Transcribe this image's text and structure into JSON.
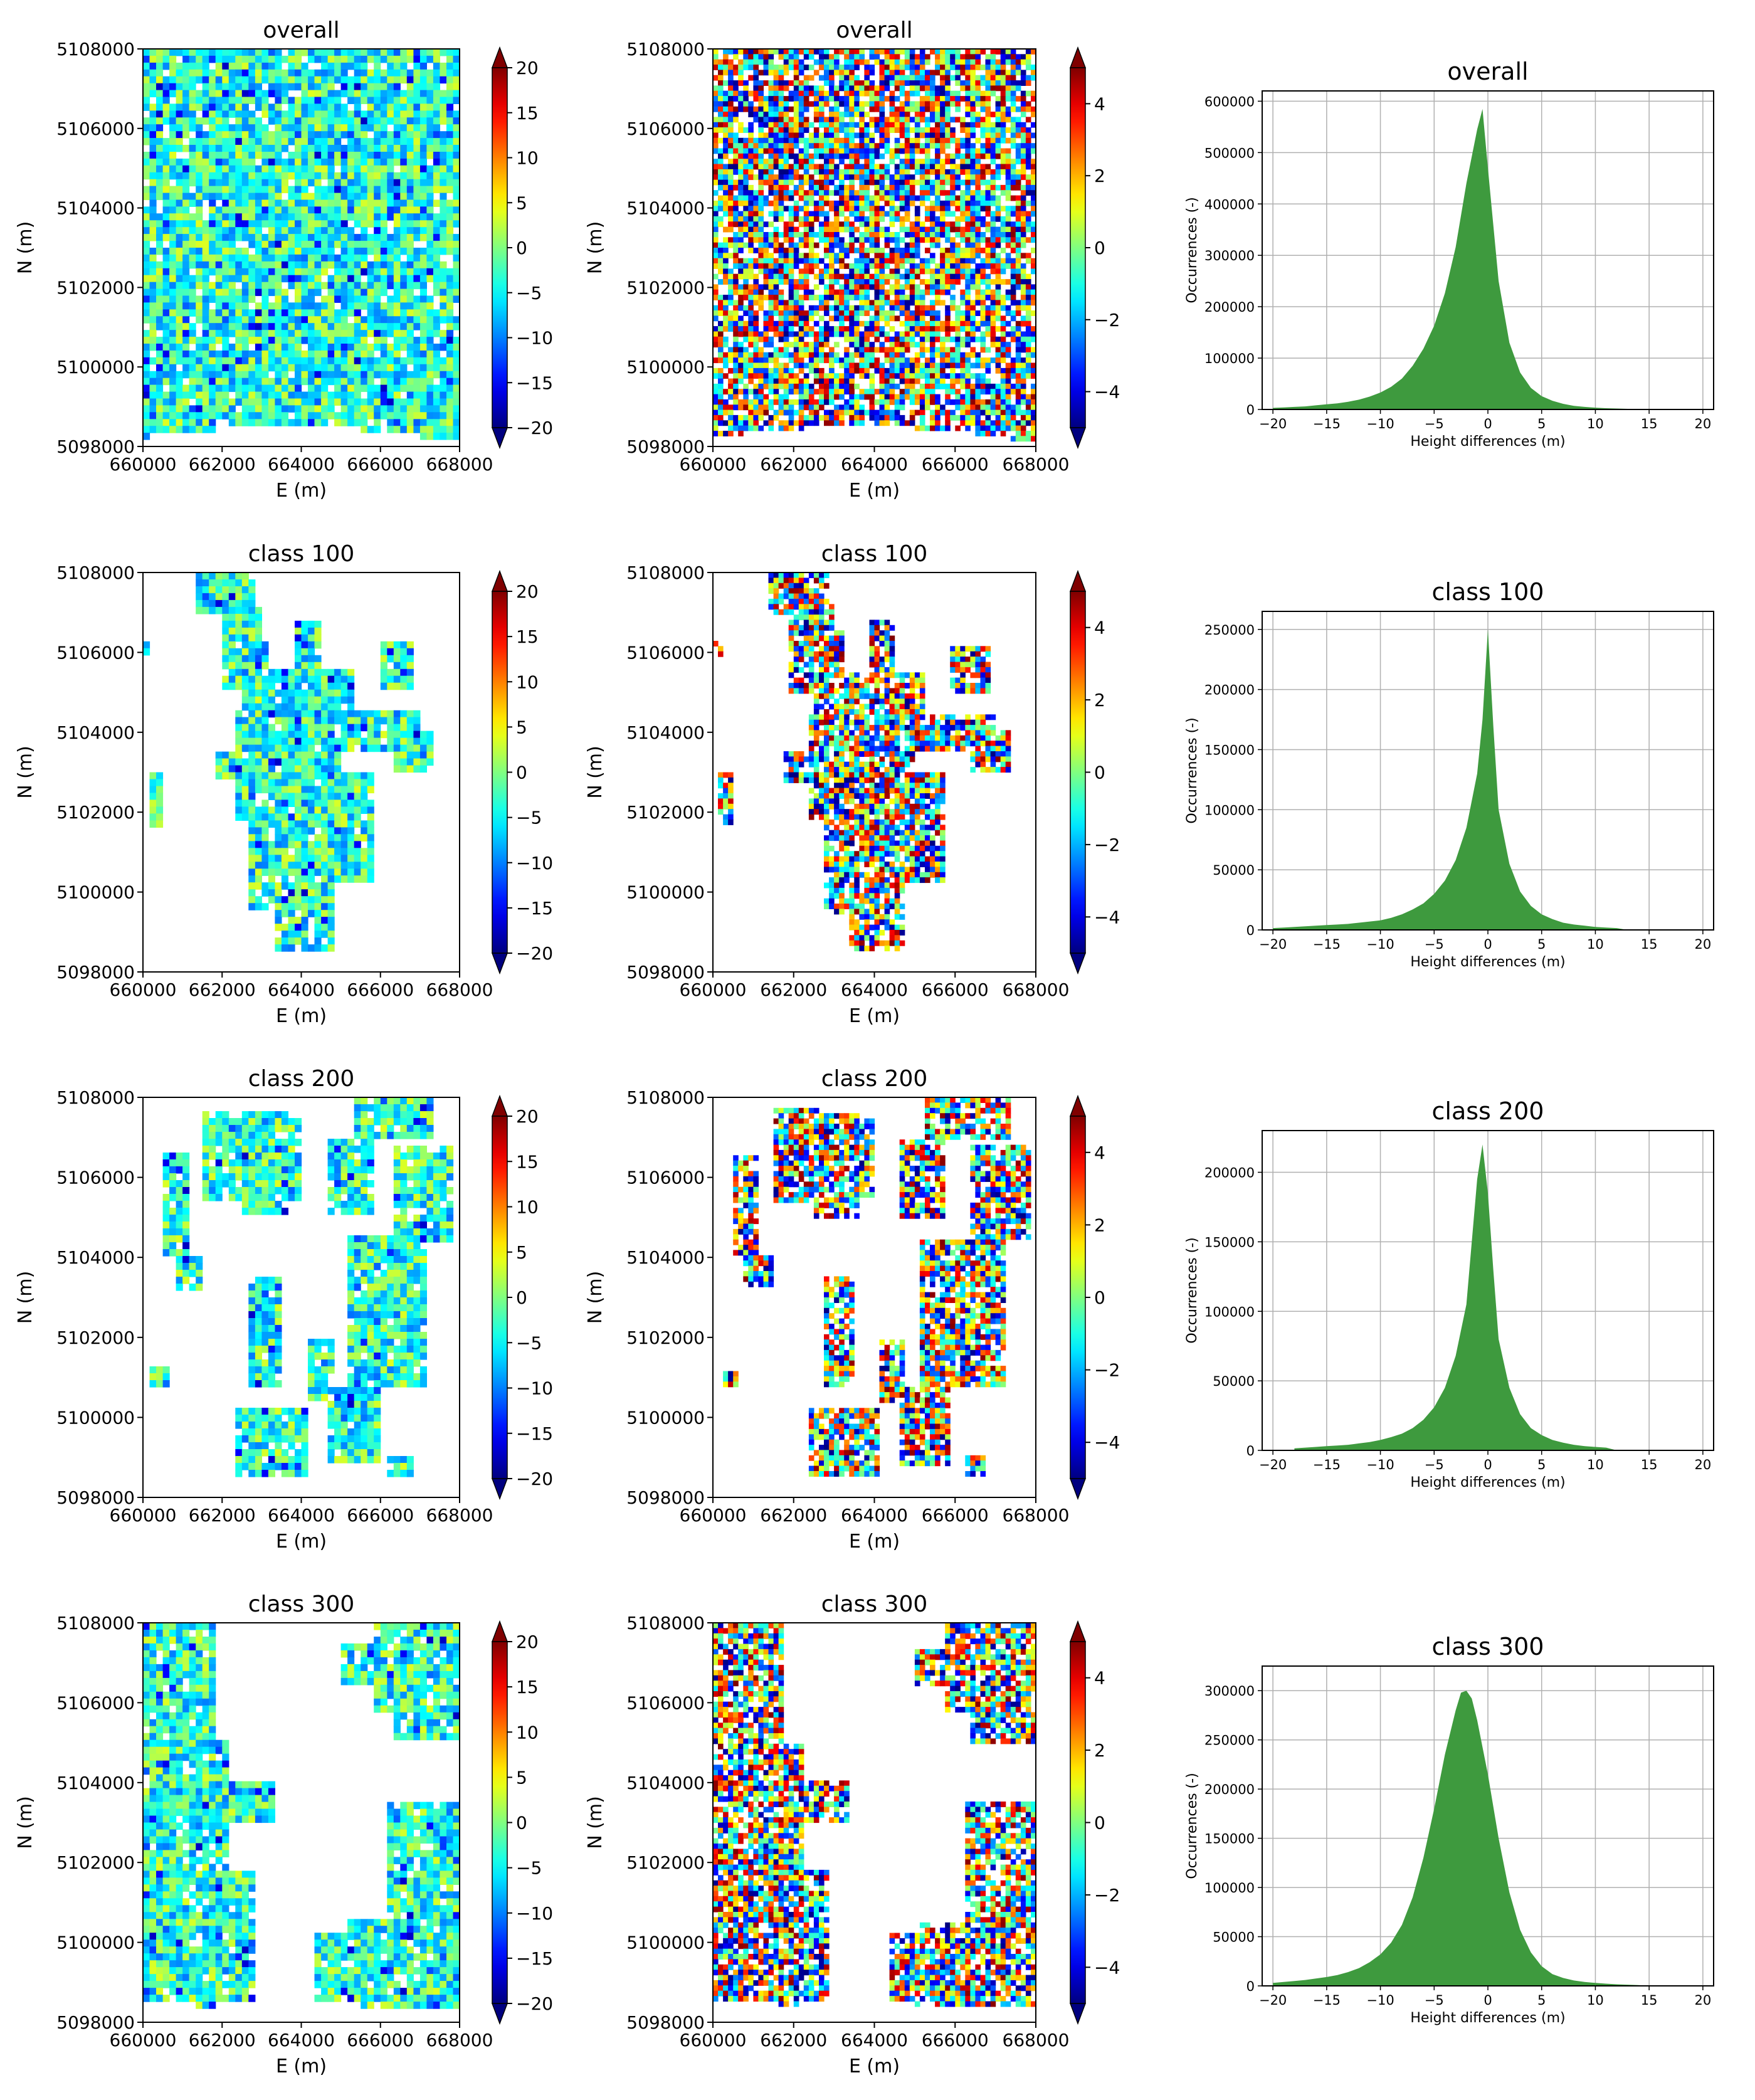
{
  "figure": {
    "rows": 4,
    "cols": 3
  },
  "colors": {
    "hist_fill": "#3e9a3e",
    "grid": "#b0b0b0",
    "axis": "#000000"
  },
  "colormap": "jet",
  "chart_data": [
    {
      "type": "heatmap",
      "title": "overall",
      "xlabel": "E (m)",
      "ylabel": "N (m)",
      "xticks": [
        "660000",
        "662000",
        "664000",
        "666000",
        "668000"
      ],
      "yticks": [
        "5108000",
        "5106000",
        "5104000",
        "5102000",
        "5100000",
        "5098000"
      ],
      "colorbar": {
        "vmin": -20,
        "vmax": 20,
        "ticks": [
          "20",
          "15",
          "10",
          "5",
          "0",
          "−5",
          "−10",
          "−15",
          "−20"
        ]
      }
    },
    {
      "type": "heatmap",
      "title": "overall",
      "xlabel": "E (m)",
      "ylabel": "N (m)",
      "xticks": [
        "660000",
        "662000",
        "664000",
        "666000",
        "668000"
      ],
      "yticks": [
        "5108000",
        "5106000",
        "5104000",
        "5102000",
        "5100000",
        "5098000"
      ],
      "colorbar": {
        "vmin": -5,
        "vmax": 5,
        "ticks": [
          "4",
          "2",
          "0",
          "−2",
          "−4"
        ]
      }
    },
    {
      "type": "bar",
      "title": "overall",
      "xlabel": "Height differences (m)",
      "ylabel": "Occurrences (-)",
      "xlim": [
        -21,
        21
      ],
      "ylim": [
        0,
        620000
      ],
      "xticks": [
        "−20",
        "−15",
        "−10",
        "−5",
        "0",
        "5",
        "10",
        "15",
        "20"
      ],
      "yticks": [
        "0",
        "100000",
        "200000",
        "300000",
        "400000",
        "500000",
        "600000"
      ],
      "bins": [
        -20,
        -19,
        -18,
        -17,
        -16,
        -15,
        -14,
        -13,
        -12,
        -11,
        -10,
        -9,
        -8,
        -7,
        -6,
        -5,
        -4,
        -3,
        -2,
        -1,
        -0.5,
        0,
        1,
        2,
        3,
        4,
        5,
        6,
        7,
        8,
        9,
        10,
        11,
        12,
        13,
        14
      ],
      "values": [
        3000,
        4000,
        5000,
        6000,
        8000,
        10000,
        12000,
        15000,
        19000,
        25000,
        33000,
        44000,
        60000,
        85000,
        118000,
        163000,
        226000,
        316000,
        440000,
        545000,
        585000,
        470000,
        250000,
        130000,
        72000,
        42000,
        26000,
        17000,
        11000,
        7000,
        5000,
        3500,
        2500,
        1800,
        1200,
        0
      ]
    },
    {
      "type": "heatmap",
      "title": "class 100",
      "xlabel": "E (m)",
      "ylabel": "N (m)",
      "xticks": [
        "660000",
        "662000",
        "664000",
        "666000",
        "668000"
      ],
      "yticks": [
        "5108000",
        "5106000",
        "5104000",
        "5102000",
        "5100000",
        "5098000"
      ],
      "colorbar": {
        "vmin": -20,
        "vmax": 20,
        "ticks": [
          "20",
          "15",
          "10",
          "5",
          "0",
          "−5",
          "−10",
          "−15",
          "−20"
        ]
      }
    },
    {
      "type": "heatmap",
      "title": "class 100",
      "xlabel": "E (m)",
      "ylabel": "N (m)",
      "xticks": [
        "660000",
        "662000",
        "664000",
        "666000",
        "668000"
      ],
      "yticks": [
        "5108000",
        "5106000",
        "5104000",
        "5102000",
        "5100000",
        "5098000"
      ],
      "colorbar": {
        "vmin": -5,
        "vmax": 5,
        "ticks": [
          "4",
          "2",
          "0",
          "−2",
          "−4"
        ]
      }
    },
    {
      "type": "bar",
      "title": "class 100",
      "xlabel": "Height differences (m)",
      "ylabel": "Occurrences (-)",
      "xlim": [
        -21,
        21
      ],
      "ylim": [
        0,
        265000
      ],
      "xticks": [
        "−20",
        "−15",
        "−10",
        "−5",
        "0",
        "5",
        "10",
        "15",
        "20"
      ],
      "yticks": [
        "0",
        "50000",
        "100000",
        "150000",
        "200000",
        "250000"
      ],
      "bins": [
        -20,
        -19,
        -18,
        -17,
        -16,
        -15,
        -14,
        -13,
        -12,
        -11,
        -10,
        -9,
        -8,
        -7,
        -6,
        -5,
        -4,
        -3,
        -2,
        -1,
        -0.5,
        0,
        0.5,
        1,
        2,
        3,
        4,
        5,
        6,
        7,
        8,
        9,
        10,
        11,
        12,
        13
      ],
      "values": [
        1500,
        2000,
        2500,
        3000,
        3500,
        4000,
        4500,
        5000,
        6000,
        7000,
        8000,
        10000,
        13000,
        17000,
        22000,
        30000,
        41000,
        58000,
        85000,
        130000,
        175000,
        250000,
        170000,
        100000,
        55000,
        32000,
        20000,
        13000,
        9000,
        6000,
        4500,
        3500,
        2500,
        2000,
        1500,
        0
      ]
    },
    {
      "type": "heatmap",
      "title": "class 200",
      "xlabel": "E (m)",
      "ylabel": "N (m)",
      "xticks": [
        "660000",
        "662000",
        "664000",
        "666000",
        "668000"
      ],
      "yticks": [
        "5108000",
        "5106000",
        "5104000",
        "5102000",
        "5100000",
        "5098000"
      ],
      "colorbar": {
        "vmin": -20,
        "vmax": 20,
        "ticks": [
          "20",
          "15",
          "10",
          "5",
          "0",
          "−5",
          "−10",
          "−15",
          "−20"
        ]
      }
    },
    {
      "type": "heatmap",
      "title": "class 200",
      "xlabel": "E (m)",
      "ylabel": "N (m)",
      "xticks": [
        "660000",
        "662000",
        "664000",
        "666000",
        "668000"
      ],
      "yticks": [
        "5108000",
        "5106000",
        "5104000",
        "5102000",
        "5100000",
        "5098000"
      ],
      "colorbar": {
        "vmin": -5,
        "vmax": 5,
        "ticks": [
          "4",
          "2",
          "0",
          "−2",
          "−4"
        ]
      }
    },
    {
      "type": "bar",
      "title": "class 200",
      "xlabel": "Height differences (m)",
      "ylabel": "Occurrences (-)",
      "xlim": [
        -21,
        21
      ],
      "ylim": [
        0,
        230000
      ],
      "xticks": [
        "−20",
        "−15",
        "−10",
        "−5",
        "0",
        "5",
        "10",
        "15",
        "20"
      ],
      "yticks": [
        "0",
        "50000",
        "100000",
        "150000",
        "200000"
      ],
      "bins": [
        -18,
        -17,
        -16,
        -15,
        -14,
        -13,
        -12,
        -11,
        -10,
        -9,
        -8,
        -7,
        -6,
        -5,
        -4,
        -3,
        -2,
        -1.5,
        -1,
        -0.5,
        0,
        0.5,
        1,
        2,
        3,
        4,
        5,
        6,
        7,
        8,
        9,
        10,
        11,
        12
      ],
      "values": [
        1500,
        2000,
        2500,
        3000,
        3500,
        4000,
        5000,
        6000,
        7500,
        9500,
        12000,
        16000,
        22000,
        31000,
        45000,
        68000,
        105000,
        150000,
        195000,
        220000,
        185000,
        130000,
        80000,
        45000,
        26000,
        16000,
        11000,
        7500,
        5500,
        4000,
        3000,
        2500,
        2000,
        0
      ]
    },
    {
      "type": "heatmap",
      "title": "class 300",
      "xlabel": "E (m)",
      "ylabel": "N (m)",
      "xticks": [
        "660000",
        "662000",
        "664000",
        "666000",
        "668000"
      ],
      "yticks": [
        "5108000",
        "5106000",
        "5104000",
        "5102000",
        "5100000",
        "5098000"
      ],
      "colorbar": {
        "vmin": -20,
        "vmax": 20,
        "ticks": [
          "20",
          "15",
          "10",
          "5",
          "0",
          "−5",
          "−10",
          "−15",
          "−20"
        ]
      }
    },
    {
      "type": "heatmap",
      "title": "class 300",
      "xlabel": "E (m)",
      "ylabel": "N (m)",
      "xticks": [
        "660000",
        "662000",
        "664000",
        "666000",
        "668000"
      ],
      "yticks": [
        "5108000",
        "5106000",
        "5104000",
        "5102000",
        "5100000",
        "5098000"
      ],
      "colorbar": {
        "vmin": -5,
        "vmax": 5,
        "ticks": [
          "4",
          "2",
          "0",
          "−2",
          "−4"
        ]
      }
    },
    {
      "type": "bar",
      "title": "class 300",
      "xlabel": "Height differences (m)",
      "ylabel": "Occurrences (-)",
      "xlim": [
        -21,
        21
      ],
      "ylim": [
        0,
        325000
      ],
      "xticks": [
        "−20",
        "−15",
        "−10",
        "−5",
        "0",
        "5",
        "10",
        "15",
        "20"
      ],
      "yticks": [
        "0",
        "50000",
        "100000",
        "150000",
        "200000",
        "250000",
        "300000"
      ],
      "bins": [
        -20,
        -19,
        -18,
        -17,
        -16,
        -15,
        -14,
        -13,
        -12,
        -11,
        -10,
        -9,
        -8,
        -7,
        -6,
        -5,
        -4,
        -3,
        -2.5,
        -2,
        -1.5,
        -1,
        0,
        1,
        2,
        3,
        4,
        5,
        6,
        7,
        8,
        9,
        10,
        11,
        12,
        13,
        14,
        15
      ],
      "values": [
        3000,
        4000,
        5000,
        6000,
        7500,
        9000,
        11000,
        14000,
        18000,
        24000,
        32000,
        44000,
        62000,
        90000,
        130000,
        180000,
        235000,
        280000,
        298000,
        300000,
        292000,
        270000,
        215000,
        150000,
        95000,
        57000,
        34000,
        20000,
        12000,
        8000,
        5500,
        4000,
        3000,
        2200,
        1600,
        1200,
        800,
        0
      ]
    }
  ]
}
